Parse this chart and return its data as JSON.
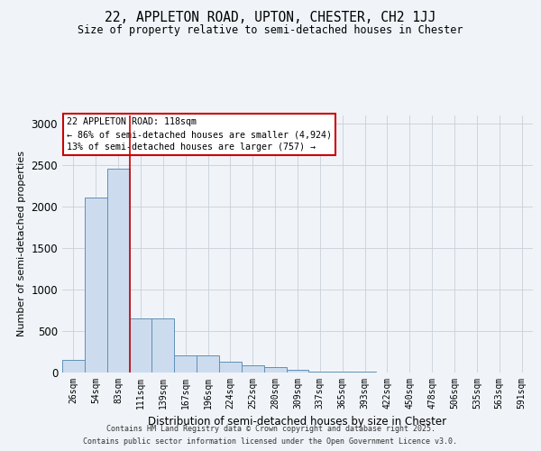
{
  "title_line1": "22, APPLETON ROAD, UPTON, CHESTER, CH2 1JJ",
  "title_line2": "Size of property relative to semi-detached houses in Chester",
  "xlabel": "Distribution of semi-detached houses by size in Chester",
  "ylabel": "Number of semi-detached properties",
  "annotation_line1": "22 APPLETON ROAD: 118sqm",
  "annotation_line2": "← 86% of semi-detached houses are smaller (4,924)",
  "annotation_line3": "13% of semi-detached houses are larger (757) →",
  "footer_line1": "Contains HM Land Registry data © Crown copyright and database right 2025.",
  "footer_line2": "Contains public sector information licensed under the Open Government Licence v3.0.",
  "categories": [
    "26sqm",
    "54sqm",
    "83sqm",
    "111sqm",
    "139sqm",
    "167sqm",
    "196sqm",
    "224sqm",
    "252sqm",
    "280sqm",
    "309sqm",
    "337sqm",
    "365sqm",
    "393sqm",
    "422sqm",
    "450sqm",
    "478sqm",
    "506sqm",
    "535sqm",
    "563sqm",
    "591sqm"
  ],
  "values": [
    150,
    2100,
    2450,
    650,
    650,
    200,
    200,
    120,
    80,
    55,
    30,
    5,
    2,
    1,
    0,
    0,
    0,
    0,
    0,
    0,
    0
  ],
  "bar_color": "#ccdcee",
  "bar_edge_color": "#6090b8",
  "vline_color": "#cc0000",
  "ylim": [
    0,
    3100
  ],
  "yticks": [
    0,
    500,
    1000,
    1500,
    2000,
    2500,
    3000
  ],
  "vline_pos": 2.5,
  "bg_color": "#f0f4f8",
  "grid_color": "#c8cfd8"
}
